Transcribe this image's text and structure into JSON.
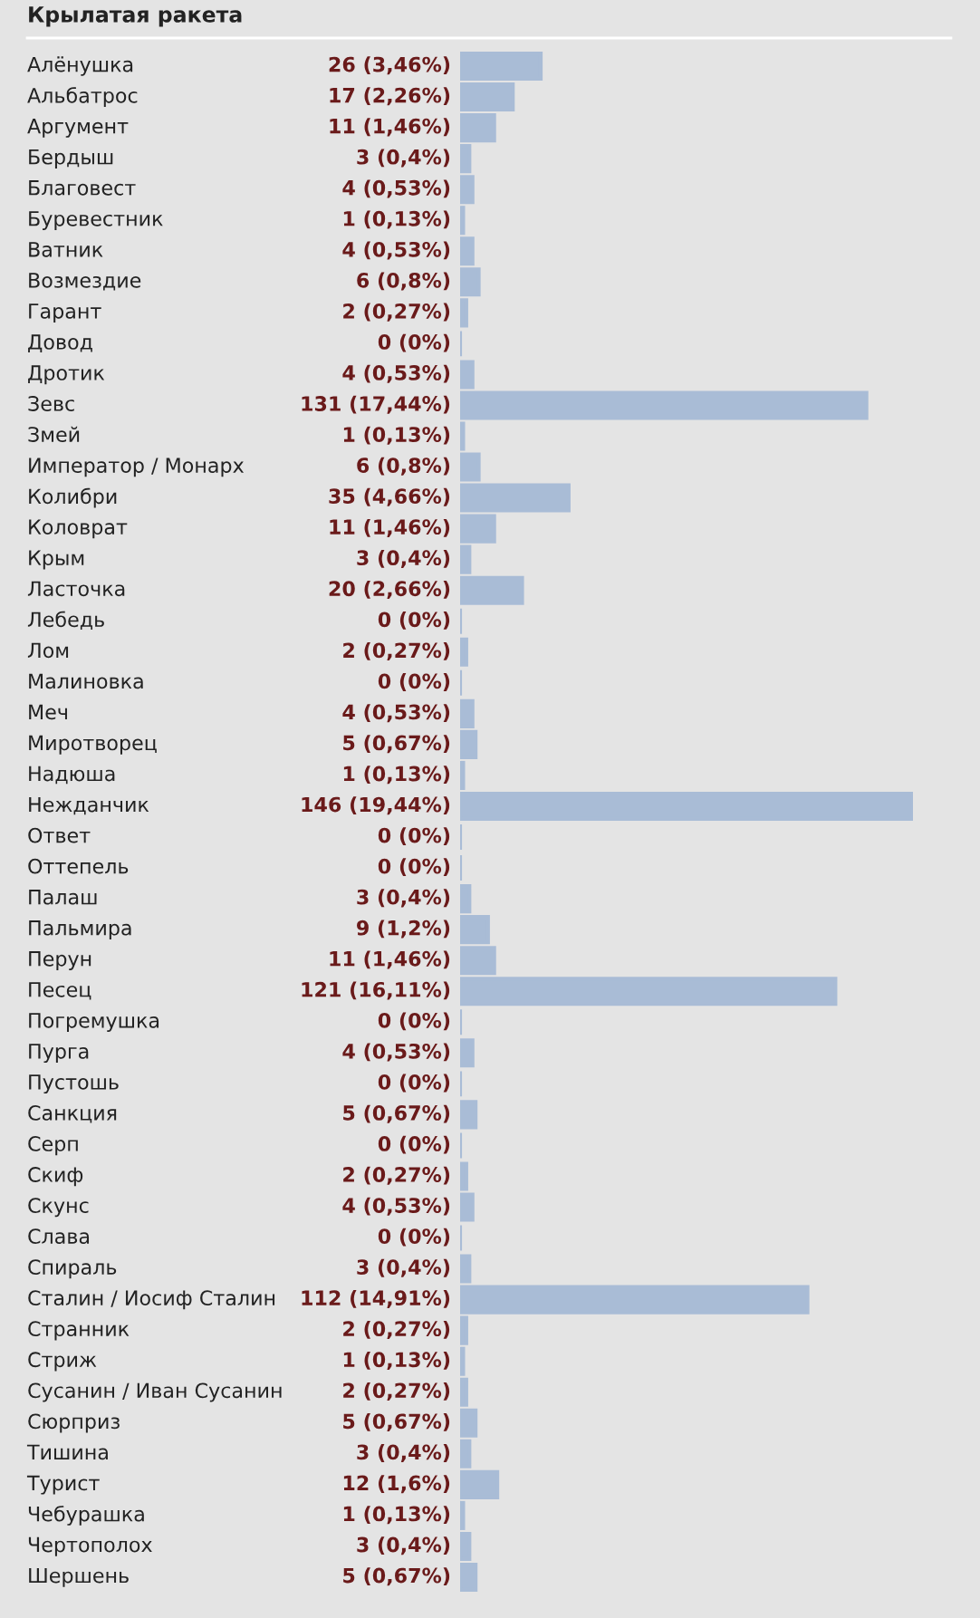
{
  "chart_data": {
    "type": "bar",
    "orientation": "horizontal",
    "title": "Крылатая ракета",
    "categories": [
      "Алёнушка",
      "Альбатрос",
      "Аргумент",
      "Бердыш",
      "Благовест",
      "Буревестник",
      "Ватник",
      "Возмездие",
      "Гарант",
      "Довод",
      "Дротик",
      "Зевс",
      "Змей",
      "Император / Монарх",
      "Колибри",
      "Коловрат",
      "Крым",
      "Ласточка",
      "Лебедь",
      "Лом",
      "Малиновка",
      "Меч",
      "Миротворец",
      "Надюша",
      "Нежданчик",
      "Ответ",
      "Оттепель",
      "Палаш",
      "Пальмира",
      "Перун",
      "Песец",
      "Погремушка",
      "Пурга",
      "Пустошь",
      "Санкция",
      "Серп",
      "Скиф",
      "Скунс",
      "Слава",
      "Спираль",
      "Сталин / Иосиф Сталин",
      "Странник",
      "Стриж",
      "Сусанин / Иван Сусанин",
      "Сюрприз",
      "Тишина",
      "Турист",
      "Чебурашка",
      "Чертополох",
      "Шершень"
    ],
    "values": [
      26,
      17,
      11,
      3,
      4,
      1,
      4,
      6,
      2,
      0,
      4,
      131,
      1,
      6,
      35,
      11,
      3,
      20,
      0,
      2,
      0,
      4,
      5,
      1,
      146,
      0,
      0,
      3,
      9,
      11,
      121,
      0,
      4,
      0,
      5,
      0,
      2,
      4,
      0,
      3,
      112,
      2,
      1,
      2,
      5,
      3,
      12,
      1,
      3,
      5
    ],
    "value_labels": [
      "26 (3,46%)",
      "17 (2,26%)",
      "11 (1,46%)",
      "3 (0,4%)",
      "4 (0,53%)",
      "1 (0,13%)",
      "4 (0,53%)",
      "6 (0,8%)",
      "2 (0,27%)",
      "0 (0%)",
      "4 (0,53%)",
      "131 (17,44%)",
      "1 (0,13%)",
      "6 (0,8%)",
      "35 (4,66%)",
      "11 (1,46%)",
      "3 (0,4%)",
      "20 (2,66%)",
      "0 (0%)",
      "2 (0,27%)",
      "0 (0%)",
      "4 (0,53%)",
      "5 (0,67%)",
      "1 (0,13%)",
      "146 (19,44%)",
      "0 (0%)",
      "0 (0%)",
      "3 (0,4%)",
      "9 (1,2%)",
      "11 (1,46%)",
      "121 (16,11%)",
      "0 (0%)",
      "4 (0,53%)",
      "0 (0%)",
      "5 (0,67%)",
      "0 (0%)",
      "2 (0,27%)",
      "4 (0,53%)",
      "0 (0%)",
      "3 (0,4%)",
      "112 (14,91%)",
      "2 (0,27%)",
      "1 (0,13%)",
      "2 (0,27%)",
      "5 (0,67%)",
      "3 (0,4%)",
      "12 (1,6%)",
      "1 (0,13%)",
      "3 (0,4%)",
      "5 (0,67%)"
    ],
    "color": "#a9bcd6"
  }
}
